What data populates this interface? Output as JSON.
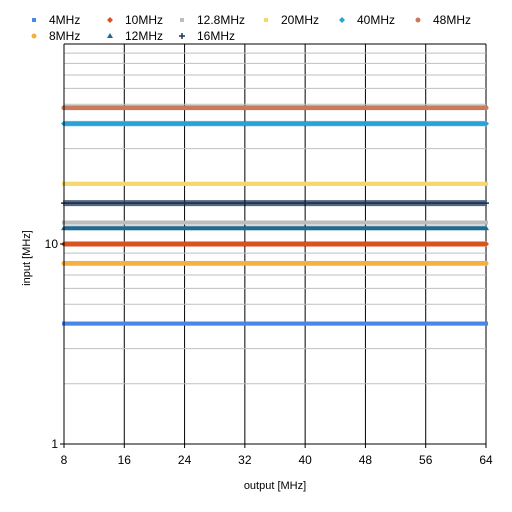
{
  "chart_data": {
    "type": "scatter",
    "title": "",
    "xlabel": "output [MHz]",
    "ylabel": "input [MHz]",
    "xlim": [
      8,
      64
    ],
    "ylim": [
      1,
      100
    ],
    "x_scale": "linear",
    "y_scale": "log",
    "x_ticks": [
      8,
      16,
      24,
      32,
      40,
      48,
      56,
      64
    ],
    "x_tick_labels": [
      "8",
      "16",
      "24",
      "32",
      "40",
      "48",
      "56",
      "64"
    ],
    "y_ticks": [
      1,
      10
    ],
    "y_tick_labels": [
      "1",
      "10"
    ],
    "grid": true,
    "legend_position": "top",
    "series": [
      {
        "name": "4MHz",
        "input": 4,
        "x_range": [
          8,
          64
        ],
        "marker": "square",
        "color": "#4a86e8"
      },
      {
        "name": "10MHz",
        "input": 10,
        "x_range": [
          8,
          64
        ],
        "marker": "diamond",
        "color": "#d9531e"
      },
      {
        "name": "12.8MHz",
        "input": 12.8,
        "x_range": [
          8,
          64
        ],
        "marker": "square",
        "color": "#bdbdbd"
      },
      {
        "name": "20MHz",
        "input": 20,
        "x_range": [
          8,
          64
        ],
        "marker": "square",
        "color": "#f5d76e"
      },
      {
        "name": "40MHz",
        "input": 40,
        "x_range": [
          8,
          64
        ],
        "marker": "diamond",
        "color": "#29a3d6"
      },
      {
        "name": "48MHz",
        "input": 48,
        "x_range": [
          8,
          64
        ],
        "marker": "circle",
        "color": "#c87a5a"
      },
      {
        "name": "8MHz",
        "input": 8,
        "x_range": [
          8,
          64
        ],
        "marker": "circle",
        "color": "#f5b042"
      },
      {
        "name": "12MHz",
        "input": 12,
        "x_range": [
          8,
          64
        ],
        "marker": "triangle",
        "color": "#1f6b8f"
      },
      {
        "name": "16MHz",
        "input": 16,
        "x_range": [
          8,
          64
        ],
        "marker": "cross",
        "color": "#1c3557"
      }
    ]
  }
}
